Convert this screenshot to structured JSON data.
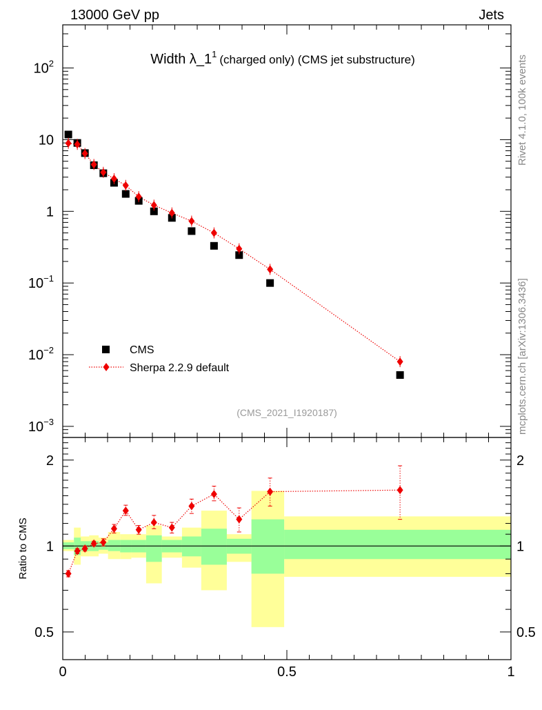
{
  "header": {
    "left": "13000 GeV pp",
    "right": "Jets"
  },
  "side_labels": {
    "top": "Rivet 4.1.0,  100k events",
    "bottom": "mcplots.cern.ch [arXiv:1306.3436]"
  },
  "colors": {
    "cms": "#000000",
    "sherpa": "#ee0000",
    "band_outer": "#ffff99",
    "band_inner": "#99ff99",
    "watermark": "#999999"
  },
  "chart_data": [
    {
      "type": "scatter",
      "yscale": "log",
      "title_main": "Width λ_1",
      "title_sup": "1",
      "title_rest": "(charged only) (CMS jet substructure)",
      "watermark": "(CMS_2021_I1920187)",
      "xlim": [
        0,
        1
      ],
      "ylim": [
        0.0007,
        400
      ],
      "y_ticks": [
        {
          "value": 0.001,
          "base": "10",
          "exp": "−3"
        },
        {
          "value": 0.01,
          "base": "10",
          "exp": "−2"
        },
        {
          "value": 0.1,
          "base": "10",
          "exp": "−1"
        },
        {
          "value": 1,
          "base": "1",
          "exp": ""
        },
        {
          "value": 10,
          "base": "10",
          "exp": ""
        },
        {
          "value": 100,
          "base": "10",
          "exp": "2"
        }
      ],
      "legend": {
        "placement": "bottom-left",
        "entries": [
          "CMS",
          "Sherpa 2.2.9 default"
        ]
      },
      "series": [
        {
          "name": "CMS",
          "marker": "square",
          "x": [
            0.0125,
            0.0325,
            0.0495,
            0.0695,
            0.0905,
            0.1145,
            0.1405,
            0.1695,
            0.2035,
            0.2435,
            0.2875,
            0.3375,
            0.3935,
            0.4625,
            0.7525
          ],
          "y": [
            11.8,
            9.0,
            6.5,
            4.4,
            3.4,
            2.5,
            1.75,
            1.4,
            1.0,
            0.81,
            0.53,
            0.33,
            0.245,
            0.1,
            0.0052
          ]
        },
        {
          "name": "Sherpa 2.2.9 default",
          "marker": "diamond",
          "line": "dotted",
          "x": [
            0.0125,
            0.0325,
            0.0495,
            0.0695,
            0.0905,
            0.1145,
            0.1405,
            0.1695,
            0.2035,
            0.2435,
            0.2875,
            0.3375,
            0.3935,
            0.4625,
            0.7525
          ],
          "y": [
            8.9,
            8.6,
            6.4,
            4.5,
            3.5,
            2.85,
            2.3,
            1.6,
            1.22,
            0.95,
            0.73,
            0.5,
            0.3,
            0.155,
            0.008
          ],
          "yerr": [
            0.25,
            0.25,
            0.2,
            0.15,
            0.12,
            0.1,
            0.08,
            0.06,
            0.05,
            0.04,
            0.035,
            0.025,
            0.02,
            0.015,
            0.0012
          ]
        }
      ]
    },
    {
      "type": "scatter",
      "yscale": "log",
      "ylabel": "Ratio to CMS",
      "xlim": [
        0,
        1
      ],
      "ylim": [
        0.4,
        2.4
      ],
      "reference_line": 1,
      "y_ticks": [
        {
          "value": 0.5,
          "label": "0.5"
        },
        {
          "value": 1,
          "label": "1"
        },
        {
          "value": 2,
          "label": "2"
        }
      ],
      "x_ticks": [
        {
          "value": 0,
          "label": "0"
        },
        {
          "value": 0.5,
          "label": "0.5"
        },
        {
          "value": 1,
          "label": "1"
        }
      ],
      "bands": [
        {
          "x0": 0.0,
          "x1": 0.025,
          "out_lo": 0.96,
          "out_hi": 1.05,
          "in_lo": 0.975,
          "in_hi": 1.03
        },
        {
          "x0": 0.025,
          "x1": 0.04,
          "out_lo": 0.86,
          "out_hi": 1.16,
          "in_lo": 0.93,
          "in_hi": 1.07
        },
        {
          "x0": 0.04,
          "x1": 0.059,
          "out_lo": 0.92,
          "out_hi": 1.08,
          "in_lo": 0.96,
          "in_hi": 1.04
        },
        {
          "x0": 0.059,
          "x1": 0.08,
          "out_lo": 0.92,
          "out_hi": 1.09,
          "in_lo": 0.96,
          "in_hi": 1.04
        },
        {
          "x0": 0.08,
          "x1": 0.101,
          "out_lo": 0.94,
          "out_hi": 1.07,
          "in_lo": 0.97,
          "in_hi": 1.03
        },
        {
          "x0": 0.101,
          "x1": 0.128,
          "out_lo": 0.9,
          "out_hi": 1.12,
          "in_lo": 0.96,
          "in_hi": 1.05
        },
        {
          "x0": 0.128,
          "x1": 0.153,
          "out_lo": 0.9,
          "out_hi": 1.1,
          "in_lo": 0.95,
          "in_hi": 1.05
        },
        {
          "x0": 0.153,
          "x1": 0.186,
          "out_lo": 0.91,
          "out_hi": 1.1,
          "in_lo": 0.95,
          "in_hi": 1.05
        },
        {
          "x0": 0.186,
          "x1": 0.221,
          "out_lo": 0.74,
          "out_hi": 1.18,
          "in_lo": 0.88,
          "in_hi": 1.09
        },
        {
          "x0": 0.221,
          "x1": 0.266,
          "out_lo": 0.91,
          "out_hi": 1.08,
          "in_lo": 0.95,
          "in_hi": 1.05
        },
        {
          "x0": 0.266,
          "x1": 0.309,
          "out_lo": 0.84,
          "out_hi": 1.16,
          "in_lo": 0.92,
          "in_hi": 1.08
        },
        {
          "x0": 0.309,
          "x1": 0.366,
          "out_lo": 0.7,
          "out_hi": 1.33,
          "in_lo": 0.86,
          "in_hi": 1.15
        },
        {
          "x0": 0.366,
          "x1": 0.421,
          "out_lo": 0.88,
          "out_hi": 1.1,
          "in_lo": 0.94,
          "in_hi": 1.06
        },
        {
          "x0": 0.421,
          "x1": 0.494,
          "out_lo": 0.52,
          "out_hi": 1.56,
          "in_lo": 0.8,
          "in_hi": 1.24
        },
        {
          "x0": 0.494,
          "x1": 1.0,
          "out_lo": 0.78,
          "out_hi": 1.27,
          "in_lo": 0.9,
          "in_hi": 1.14
        }
      ],
      "series": [
        {
          "name": "Sherpa 2.2.9 default",
          "marker": "diamond",
          "line": "dotted",
          "x": [
            0.0125,
            0.0325,
            0.0495,
            0.0695,
            0.0905,
            0.1145,
            0.1405,
            0.1695,
            0.2035,
            0.2435,
            0.2875,
            0.3375,
            0.3935,
            0.4625,
            0.7525
          ],
          "y": [
            0.8,
            0.96,
            0.98,
            1.02,
            1.03,
            1.15,
            1.33,
            1.14,
            1.21,
            1.16,
            1.38,
            1.52,
            1.24,
            1.55,
            1.57
          ],
          "ylo": [
            0.78,
            0.94,
            0.96,
            1.0,
            1.0,
            1.11,
            1.28,
            1.1,
            1.15,
            1.11,
            1.3,
            1.44,
            1.12,
            1.38,
            1.24
          ],
          "yhi": [
            0.82,
            0.98,
            1.0,
            1.04,
            1.06,
            1.19,
            1.39,
            1.18,
            1.28,
            1.21,
            1.46,
            1.62,
            1.36,
            1.73,
            1.91
          ]
        }
      ]
    }
  ]
}
